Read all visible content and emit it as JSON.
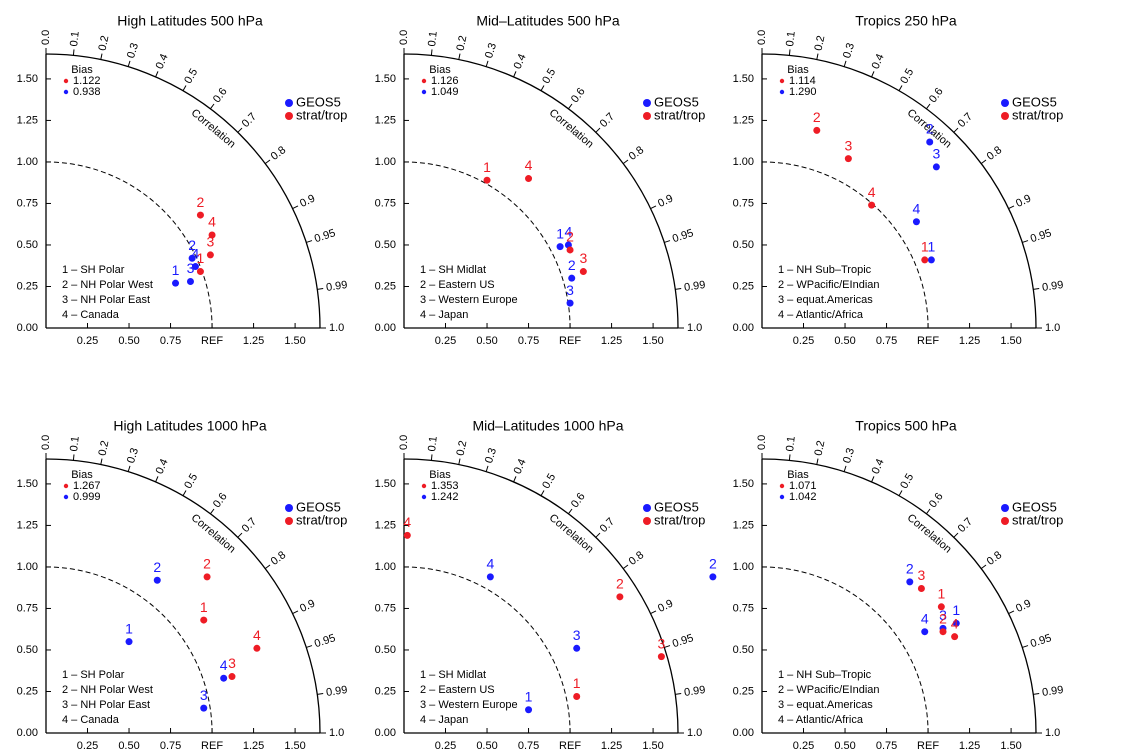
{
  "chart_data": [
    {
      "type": "taylor",
      "title": "High Latitudes 500 hPa",
      "xlim": [
        0,
        1.65
      ],
      "ylim": [
        0,
        1.65
      ],
      "reference_std": 1,
      "xticks": [
        0.25,
        {
          "value": 0.5,
          "label": "0.50"
        },
        0.75,
        {
          "value": 1,
          "label": "REF"
        },
        1.25,
        {
          "value": 1.5,
          "label": "1.50"
        }
      ],
      "yticks": [
        {
          "value": 0,
          "label": "0.00"
        },
        0.25,
        {
          "value": 0.5,
          "label": "0.50"
        },
        0.75,
        {
          "value": 1,
          "label": "1.00"
        },
        1.25,
        {
          "value": 1.5,
          "label": "1.50"
        }
      ],
      "correlation_ticks": [
        {
          "value": 0,
          "label": "0.0"
        },
        0.1,
        0.2,
        0.3,
        0.4,
        0.5,
        0.6,
        0.7,
        0.8,
        0.9,
        0.95,
        0.99,
        {
          "value": 1,
          "label": "1.0"
        }
      ],
      "correlation_label": "Correlation",
      "bias_title": "Bias",
      "point_labels": [
        "1",
        "2",
        "3",
        "4"
      ],
      "regions": [
        "1 – SH Polar",
        "2 – NH Polar West",
        "3 – NH Polar East",
        "4 – Canada"
      ],
      "series": [
        {
          "name": "GEOS5",
          "color": "#1a1aff",
          "bias": 0.938,
          "x": [
            0.78,
            0.88,
            0.87,
            0.9
          ],
          "values": [
            0.27,
            0.42,
            0.28,
            0.37
          ]
        },
        {
          "name": "strat/trop",
          "color": "#ee1c25",
          "bias": 1.122,
          "x": [
            0.93,
            0.93,
            0.99,
            1.0
          ],
          "values": [
            0.34,
            0.68,
            0.44,
            0.56
          ]
        }
      ]
    },
    {
      "type": "taylor",
      "title": "Mid–Latitudes 500 hPa",
      "xlim": [
        0,
        1.65
      ],
      "ylim": [
        0,
        1.65
      ],
      "reference_std": 1,
      "xticks": [
        0.25,
        {
          "value": 0.5,
          "label": "0.50"
        },
        0.75,
        {
          "value": 1,
          "label": "REF"
        },
        1.25,
        {
          "value": 1.5,
          "label": "1.50"
        }
      ],
      "yticks": [
        {
          "value": 0,
          "label": "0.00"
        },
        0.25,
        {
          "value": 0.5,
          "label": "0.50"
        },
        0.75,
        {
          "value": 1,
          "label": "1.00"
        },
        1.25,
        {
          "value": 1.5,
          "label": "1.50"
        }
      ],
      "correlation_ticks": [
        {
          "value": 0,
          "label": "0.0"
        },
        0.1,
        0.2,
        0.3,
        0.4,
        0.5,
        0.6,
        0.7,
        0.8,
        0.9,
        0.95,
        0.99,
        {
          "value": 1,
          "label": "1.0"
        }
      ],
      "correlation_label": "Correlation",
      "bias_title": "Bias",
      "point_labels": [
        "1",
        "2",
        "3",
        "4"
      ],
      "regions": [
        "1 – SH Midlat",
        "2 – Eastern US",
        "3 – Western Europe",
        "4 – Japan"
      ],
      "series": [
        {
          "name": "GEOS5",
          "color": "#1a1aff",
          "bias": 1.049,
          "x": [
            0.94,
            1.01,
            1.0,
            0.99
          ],
          "values": [
            0.49,
            0.3,
            0.15,
            0.5
          ]
        },
        {
          "name": "strat/trop",
          "color": "#ee1c25",
          "bias": 1.126,
          "x": [
            0.5,
            1.0,
            1.08,
            0.75
          ],
          "values": [
            0.89,
            0.47,
            0.34,
            0.9
          ]
        }
      ]
    },
    {
      "type": "taylor",
      "title": "Tropics 250 hPa",
      "xlim": [
        0,
        1.65
      ],
      "ylim": [
        0,
        1.65
      ],
      "reference_std": 1,
      "xticks": [
        0.25,
        {
          "value": 0.5,
          "label": "0.50"
        },
        0.75,
        {
          "value": 1,
          "label": "REF"
        },
        1.25,
        {
          "value": 1.5,
          "label": "1.50"
        }
      ],
      "yticks": [
        {
          "value": 0,
          "label": "0.00"
        },
        0.25,
        {
          "value": 0.5,
          "label": "0.50"
        },
        0.75,
        {
          "value": 1,
          "label": "1.00"
        },
        1.25,
        {
          "value": 1.5,
          "label": "1.50"
        }
      ],
      "correlation_ticks": [
        {
          "value": 0,
          "label": "0.0"
        },
        0.1,
        0.2,
        0.3,
        0.4,
        0.5,
        0.6,
        0.7,
        0.8,
        0.9,
        0.95,
        0.99,
        {
          "value": 1,
          "label": "1.0"
        }
      ],
      "correlation_label": "Correlation",
      "bias_title": "Bias",
      "point_labels": [
        "1",
        "2",
        "3",
        "4"
      ],
      "regions": [
        "1 – NH Sub–Tropic",
        "2 – WPacific/EIndian",
        "3 – equat.Americas",
        "4 – Atlantic/Africa"
      ],
      "series": [
        {
          "name": "GEOS5",
          "color": "#1a1aff",
          "bias": {
            "value": 1.29,
            "label": "1.290"
          },
          "x": [
            1.02,
            1.01,
            1.05,
            0.93
          ],
          "values": [
            0.41,
            1.12,
            0.97,
            0.64
          ]
        },
        {
          "name": "strat/trop",
          "color": "#ee1c25",
          "bias": 1.114,
          "x": [
            0.98,
            0.33,
            0.52,
            0.66
          ],
          "values": [
            0.41,
            1.19,
            1.02,
            0.74
          ]
        }
      ]
    },
    {
      "type": "taylor",
      "title": "High Latitudes 1000 hPa",
      "xlim": [
        0,
        1.65
      ],
      "ylim": [
        0,
        1.65
      ],
      "reference_std": 1,
      "xticks": [
        0.25,
        {
          "value": 0.5,
          "label": "0.50"
        },
        0.75,
        {
          "value": 1,
          "label": "REF"
        },
        1.25,
        {
          "value": 1.5,
          "label": "1.50"
        }
      ],
      "yticks": [
        {
          "value": 0,
          "label": "0.00"
        },
        0.25,
        {
          "value": 0.5,
          "label": "0.50"
        },
        0.75,
        {
          "value": 1,
          "label": "1.00"
        },
        1.25,
        {
          "value": 1.5,
          "label": "1.50"
        }
      ],
      "correlation_ticks": [
        {
          "value": 0,
          "label": "0.0"
        },
        0.1,
        0.2,
        0.3,
        0.4,
        0.5,
        0.6,
        0.7,
        0.8,
        0.9,
        0.95,
        0.99,
        {
          "value": 1,
          "label": "1.0"
        }
      ],
      "correlation_label": "Correlation",
      "bias_title": "Bias",
      "point_labels": [
        "1",
        "2",
        "3",
        "4"
      ],
      "regions": [
        "1 – SH Polar",
        "2 – NH Polar West",
        "3 – NH Polar East",
        "4 – Canada"
      ],
      "series": [
        {
          "name": "GEOS5",
          "color": "#1a1aff",
          "bias": 0.999,
          "x": [
            0.5,
            0.67,
            0.95,
            1.07
          ],
          "values": [
            0.55,
            0.92,
            0.15,
            0.33
          ]
        },
        {
          "name": "strat/trop",
          "color": "#ee1c25",
          "bias": 1.267,
          "x": [
            0.95,
            0.97,
            1.12,
            1.27
          ],
          "values": [
            0.68,
            0.94,
            0.34,
            0.51
          ]
        }
      ]
    },
    {
      "type": "taylor",
      "title": "Mid–Latitudes 1000 hPa",
      "xlim": [
        0,
        1.65
      ],
      "ylim": [
        0,
        1.65
      ],
      "reference_std": 1,
      "xticks": [
        0.25,
        {
          "value": 0.5,
          "label": "0.50"
        },
        0.75,
        {
          "value": 1,
          "label": "REF"
        },
        1.25,
        {
          "value": 1.5,
          "label": "1.50"
        }
      ],
      "yticks": [
        {
          "value": 0,
          "label": "0.00"
        },
        0.25,
        {
          "value": 0.5,
          "label": "0.50"
        },
        0.75,
        {
          "value": 1,
          "label": "1.00"
        },
        1.25,
        {
          "value": 1.5,
          "label": "1.50"
        }
      ],
      "correlation_ticks": [
        {
          "value": 0,
          "label": "0.0"
        },
        0.1,
        0.2,
        0.3,
        0.4,
        0.5,
        0.6,
        0.7,
        0.8,
        0.9,
        0.95,
        0.99,
        {
          "value": 1,
          "label": "1.0"
        }
      ],
      "correlation_label": "Correlation",
      "bias_title": "Bias",
      "point_labels": [
        "1",
        "2",
        "3",
        "4"
      ],
      "regions": [
        "1 – SH Midlat",
        "2 – Eastern US",
        "3 – Western Europe",
        "4 – Japan"
      ],
      "series": [
        {
          "name": "GEOS5",
          "color": "#1a1aff",
          "bias": 1.242,
          "x": [
            0.75,
            1.86,
            1.04,
            0.52
          ],
          "values": [
            0.14,
            0.94,
            0.51,
            0.94
          ]
        },
        {
          "name": "strat/trop",
          "color": "#ee1c25",
          "bias": 1.353,
          "x": [
            1.04,
            1.3,
            1.55,
            0.02
          ],
          "values": [
            0.22,
            0.82,
            0.46,
            1.19
          ]
        }
      ]
    },
    {
      "type": "taylor",
      "title": "Tropics 500 hPa",
      "xlim": [
        0,
        1.65
      ],
      "ylim": [
        0,
        1.65
      ],
      "reference_std": 1,
      "xticks": [
        0.25,
        {
          "value": 0.5,
          "label": "0.50"
        },
        0.75,
        {
          "value": 1,
          "label": "REF"
        },
        1.25,
        {
          "value": 1.5,
          "label": "1.50"
        }
      ],
      "yticks": [
        {
          "value": 0,
          "label": "0.00"
        },
        0.25,
        {
          "value": 0.5,
          "label": "0.50"
        },
        0.75,
        {
          "value": 1,
          "label": "1.00"
        },
        1.25,
        {
          "value": 1.5,
          "label": "1.50"
        }
      ],
      "correlation_ticks": [
        {
          "value": 0,
          "label": "0.0"
        },
        0.1,
        0.2,
        0.3,
        0.4,
        0.5,
        0.6,
        0.7,
        0.8,
        0.9,
        0.95,
        0.99,
        {
          "value": 1,
          "label": "1.0"
        }
      ],
      "correlation_label": "Correlation",
      "bias_title": "Bias",
      "point_labels": [
        "1",
        "2",
        "3",
        "4"
      ],
      "regions": [
        "1 – NH Sub–Tropic",
        "2 – WPacific/EIndian",
        "3 – equat.Americas",
        "4 – Atlantic/Africa"
      ],
      "series": [
        {
          "name": "GEOS5",
          "color": "#1a1aff",
          "bias": 1.042,
          "x": [
            1.17,
            0.89,
            1.09,
            0.98
          ],
          "values": [
            0.66,
            0.91,
            0.63,
            0.61
          ]
        },
        {
          "name": "strat/trop",
          "color": "#ee1c25",
          "bias": 1.071,
          "x": [
            1.08,
            1.09,
            0.96,
            1.16
          ],
          "values": [
            0.76,
            0.61,
            0.87,
            0.58
          ]
        }
      ]
    }
  ]
}
